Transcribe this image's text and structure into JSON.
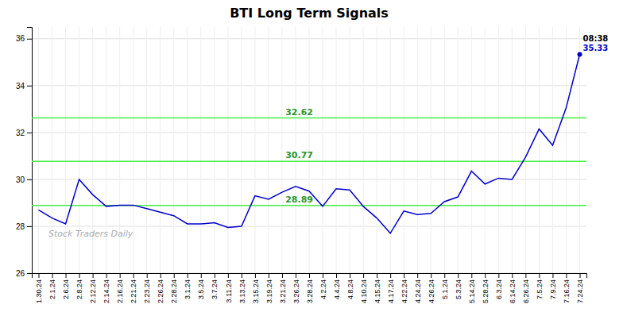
{
  "chart_data": {
    "type": "line",
    "title": "BTI Long Term Signals",
    "categories": [
      "1.30.24",
      "2.1.24",
      "2.6.24",
      "2.8.24",
      "2.12.24",
      "2.14.24",
      "2.16.24",
      "2.21.24",
      "2.23.24",
      "2.26.24",
      "2.28.24",
      "3.1.24",
      "3.5.24",
      "3.7.24",
      "3.11.24",
      "3.13.24",
      "3.15.24",
      "3.19.24",
      "3.21.24",
      "3.26.24",
      "3.28.24",
      "4.2.24",
      "4.4.24",
      "4.8.24",
      "4.10.24",
      "4.15.24",
      "4.17.24",
      "4.22.24",
      "4.24.24",
      "4.26.24",
      "5.1.24",
      "5.3.24",
      "5.14.24",
      "5.28.24",
      "6.3.24",
      "6.14.24",
      "6.26.24",
      "7.5.24",
      "7.9.24",
      "7.16.24",
      "7.24.24"
    ],
    "values": [
      28.7,
      28.35,
      28.1,
      30.0,
      29.35,
      28.85,
      28.9,
      28.9,
      28.75,
      28.6,
      28.45,
      28.1,
      28.1,
      28.15,
      27.95,
      28.0,
      29.3,
      29.15,
      29.45,
      29.7,
      29.5,
      28.85,
      29.6,
      29.55,
      28.85,
      28.35,
      27.7,
      28.65,
      28.5,
      28.55,
      29.05,
      29.25,
      30.35,
      29.8,
      30.05,
      30.0,
      30.95,
      32.15,
      31.45,
      33.05,
      35.33
    ],
    "color": "#0000cc",
    "ylim": [
      26,
      36.5
    ],
    "yticks": [
      26,
      28,
      30,
      32,
      34,
      36
    ],
    "grid": true,
    "hlines": [
      {
        "value": 32.62,
        "label": "32.62",
        "color": "#44ee44"
      },
      {
        "value": 30.77,
        "label": "30.77",
        "color": "#44ee44"
      },
      {
        "value": 28.89,
        "label": "28.89",
        "color": "#44ee44"
      }
    ],
    "annotations": [
      {
        "text": "08:38",
        "color": "#000000"
      },
      {
        "text": "35.33",
        "color": "#0000cc"
      }
    ],
    "watermark": {
      "text": "Stock Traders Daily",
      "color": "#aaaaaa"
    }
  }
}
